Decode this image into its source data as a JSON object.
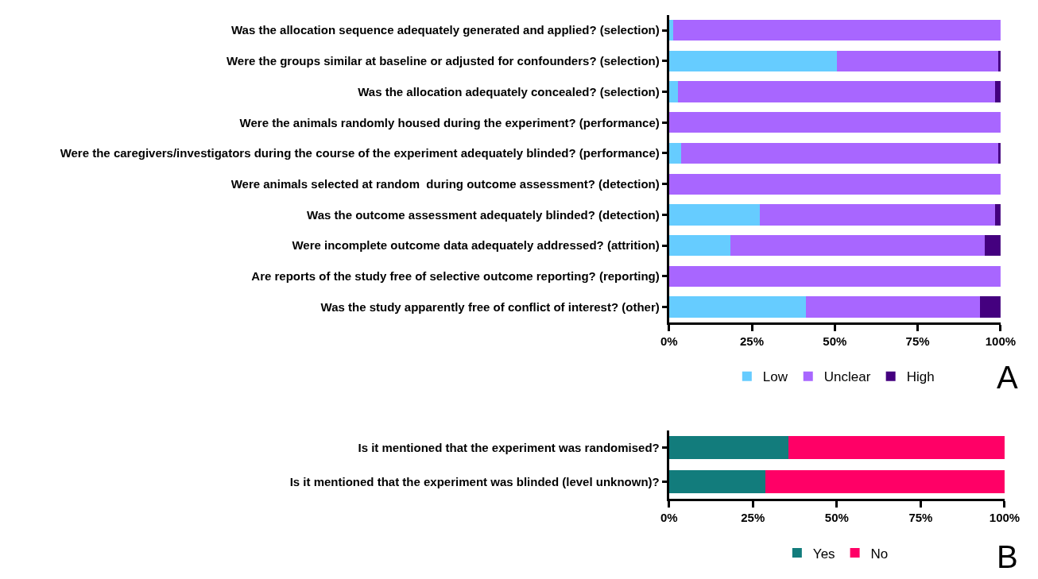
{
  "chart_data": [
    {
      "type": "bar",
      "orientation": "horizontal",
      "stacked": true,
      "categories": [
        "Was the allocation sequence adequately generated and applied? (selection)",
        "Were the groups similar at baseline or adjusted for confounders? (selection)",
        "Was the allocation adequately concealed? (selection)",
        "Were the animals randomly housed during the experiment? (performance)",
        "Were the caregivers/investigators during the course of the experiment adequately blinded? (performance)",
        "Were animals selected at random  during outcome assessment? (detection)",
        "Was the outcome assessment adequately blinded? (detection)",
        "Were incomplete outcome data adequately addressed? (attrition)",
        "Are reports of the study free of selective outcome reporting? (reporting)",
        "Was the study apparently free of conflict of interest? (other)"
      ],
      "series": [
        {
          "name": "Low",
          "color": "#66ccff",
          "values": [
            1.2,
            50.7,
            2.8,
            0,
            3.6,
            0,
            27.3,
            18.6,
            0,
            41.3
          ]
        },
        {
          "name": "Unclear",
          "color": "#a866ff",
          "values": [
            98.8,
            48.5,
            95.6,
            100,
            95.6,
            100,
            71.1,
            76.7,
            100,
            52.4
          ]
        },
        {
          "name": "High",
          "color": "#44007f",
          "values": [
            0,
            0.8,
            1.6,
            0,
            0.8,
            0,
            1.6,
            4.7,
            0,
            6.3
          ]
        }
      ],
      "xlim": [
        0,
        100
      ],
      "xticks": [
        {
          "value": 0,
          "label": "0%"
        },
        {
          "value": 25,
          "label": "25%"
        },
        {
          "value": 50,
          "label": "50%"
        },
        {
          "value": 75,
          "label": "75%"
        },
        {
          "value": 100,
          "label": "100%"
        }
      ],
      "legend": "bottom",
      "annotations": [
        "A"
      ]
    },
    {
      "type": "bar",
      "orientation": "horizontal",
      "stacked": true,
      "categories": [
        "Is it mentioned that the experiment was randomised?",
        "Is it mentioned that the experiment was blinded (level unknown)?"
      ],
      "series": [
        {
          "name": "Yes",
          "color": "#127c7c",
          "values": [
            35.7,
            28.7
          ]
        },
        {
          "name": "No",
          "color": "#ff0066",
          "values": [
            64.3,
            71.3
          ]
        }
      ],
      "xlim": [
        0,
        100
      ],
      "xticks": [
        {
          "value": 0,
          "label": "0%"
        },
        {
          "value": 25,
          "label": "25%"
        },
        {
          "value": 50,
          "label": "50%"
        },
        {
          "value": 75,
          "label": "75%"
        },
        {
          "value": 100,
          "label": "100%"
        }
      ],
      "legend": "bottom",
      "annotations": [
        "B"
      ]
    }
  ]
}
